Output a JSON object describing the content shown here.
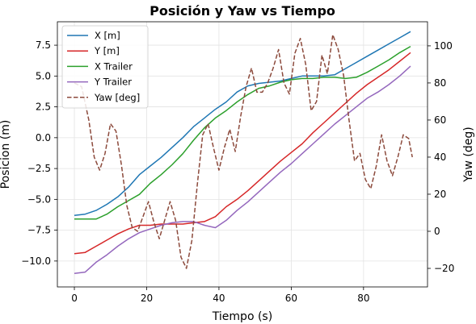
{
  "chart_data": {
    "type": "line",
    "title": "Posición y Yaw vs Tiempo",
    "xlabel": "Tiempo (s)",
    "ylabel": "Posicion (m)",
    "y2label": "Yaw (deg)",
    "xlim": [
      -4.7,
      97.7
    ],
    "ylim": [
      -12.1,
      9.4
    ],
    "y2lim": [
      -30,
      113
    ],
    "xticks": [
      "0",
      "20",
      "40",
      "60",
      "80"
    ],
    "xtick_values": [
      0,
      20,
      40,
      60,
      80
    ],
    "yticks": [
      "−10.0",
      "−7.5",
      "−5.0",
      "−2.5",
      "0.0",
      "2.5",
      "5.0",
      "7.5"
    ],
    "ytick_values": [
      -10,
      -7.5,
      -5,
      -2.5,
      0,
      2.5,
      5,
      7.5
    ],
    "y2ticks": [
      "−20",
      "0",
      "20",
      "40",
      "60",
      "80",
      "100"
    ],
    "y2tick_values": [
      -20,
      0,
      20,
      40,
      60,
      80,
      100
    ],
    "grid": true,
    "legend_position": "top-left",
    "series": [
      {
        "name": "X [m]",
        "color": "#1f77b4",
        "style": "solid",
        "axis": "left",
        "x": [
          0,
          3,
          6,
          9,
          12,
          15,
          18,
          21,
          24,
          27,
          30,
          33,
          36,
          39,
          42,
          45,
          48,
          51,
          54,
          57,
          60,
          63,
          66,
          69,
          72,
          75,
          78,
          81,
          84,
          87,
          90,
          93
        ],
        "y": [
          -6.3,
          -6.2,
          -5.9,
          -5.4,
          -4.8,
          -4.0,
          -3.0,
          -2.3,
          -1.6,
          -0.8,
          0.0,
          0.9,
          1.6,
          2.3,
          2.9,
          3.7,
          4.2,
          4.4,
          4.5,
          4.6,
          4.8,
          5.0,
          5.0,
          5.0,
          5.1,
          5.6,
          6.1,
          6.6,
          7.1,
          7.6,
          8.1,
          8.6
        ]
      },
      {
        "name": "Y [m]",
        "color": "#d62728",
        "style": "solid",
        "axis": "left",
        "x": [
          0,
          3,
          6,
          9,
          12,
          15,
          18,
          21,
          24,
          27,
          30,
          33,
          36,
          39,
          42,
          45,
          48,
          51,
          54,
          57,
          60,
          63,
          66,
          69,
          72,
          75,
          78,
          81,
          84,
          87,
          90,
          93
        ],
        "y": [
          -9.4,
          -9.3,
          -8.8,
          -8.3,
          -7.8,
          -7.4,
          -7.1,
          -7.1,
          -7.0,
          -7.0,
          -7.0,
          -6.9,
          -6.8,
          -6.4,
          -5.6,
          -5.0,
          -4.3,
          -3.5,
          -2.7,
          -1.9,
          -1.2,
          -0.5,
          0.4,
          1.2,
          2.0,
          2.8,
          3.6,
          4.3,
          4.9,
          5.5,
          6.2,
          6.9
        ]
      },
      {
        "name": "X Trailer",
        "color": "#2ca02c",
        "style": "solid",
        "axis": "left",
        "x": [
          0,
          3,
          6,
          9,
          12,
          15,
          18,
          21,
          24,
          27,
          30,
          33,
          36,
          39,
          42,
          45,
          48,
          51,
          54,
          57,
          60,
          63,
          66,
          69,
          72,
          75,
          78,
          81,
          84,
          87,
          90,
          93
        ],
        "y": [
          -6.6,
          -6.6,
          -6.6,
          -6.2,
          -5.6,
          -5.1,
          -4.6,
          -3.7,
          -3.0,
          -2.2,
          -1.3,
          -0.2,
          0.8,
          1.6,
          2.2,
          2.9,
          3.5,
          4.0,
          4.2,
          4.5,
          4.7,
          4.8,
          4.8,
          4.9,
          4.9,
          4.8,
          4.9,
          5.3,
          5.8,
          6.3,
          6.9,
          7.4
        ]
      },
      {
        "name": "Y Trailer",
        "color": "#9467bd",
        "style": "solid",
        "axis": "left",
        "x": [
          0,
          3,
          6,
          9,
          12,
          15,
          18,
          21,
          24,
          27,
          30,
          33,
          36,
          39,
          42,
          45,
          48,
          51,
          54,
          57,
          60,
          63,
          66,
          69,
          72,
          75,
          78,
          81,
          84,
          87,
          90,
          93
        ],
        "y": [
          -11.0,
          -10.9,
          -10.1,
          -9.5,
          -8.8,
          -8.2,
          -7.7,
          -7.4,
          -7.1,
          -6.9,
          -6.8,
          -6.8,
          -7.1,
          -7.3,
          -6.7,
          -5.9,
          -5.2,
          -4.4,
          -3.6,
          -2.8,
          -2.1,
          -1.3,
          -0.5,
          0.3,
          1.1,
          1.8,
          2.5,
          3.2,
          3.7,
          4.3,
          5.0,
          5.8
        ]
      },
      {
        "name": "Yaw [deg]",
        "color": "#8c4a3c",
        "style": "dashed",
        "axis": "right",
        "x": [
          0,
          2,
          4,
          5.5,
          7,
          8.5,
          10,
          11.5,
          13,
          14.5,
          16,
          17.5,
          19,
          20.5,
          22,
          23.5,
          25,
          26.5,
          28,
          29.5,
          31,
          32.5,
          34,
          35.5,
          37,
          38.5,
          40,
          41.5,
          43,
          44.5,
          46,
          47.5,
          49,
          50.5,
          52,
          53.5,
          55,
          56.5,
          58,
          59.5,
          61,
          62.5,
          64,
          65.5,
          67,
          68.5,
          70,
          71.5,
          73,
          74.5,
          76,
          77.5,
          79,
          80.5,
          82,
          83.5,
          85,
          86.5,
          88,
          89.5,
          91,
          92.5,
          93.5
        ],
        "y": [
          80,
          78,
          60,
          40,
          33,
          42,
          58,
          54,
          36,
          14,
          2,
          0,
          8,
          16,
          5,
          -4,
          6,
          16,
          6,
          -14,
          -20,
          -5,
          25,
          52,
          58,
          45,
          33,
          45,
          55,
          43,
          62,
          78,
          88,
          75,
          75,
          80,
          88,
          98,
          80,
          74,
          96,
          104,
          90,
          65,
          70,
          95,
          85,
          106,
          98,
          84,
          60,
          38,
          42,
          28,
          23,
          35,
          52,
          38,
          30,
          40,
          52,
          50,
          40
        ]
      }
    ]
  }
}
